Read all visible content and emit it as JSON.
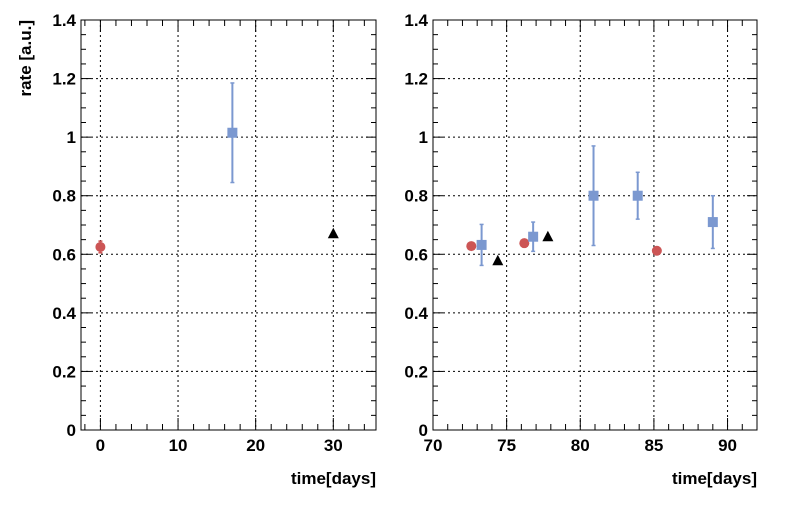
{
  "chart_data": [
    {
      "type": "scatter",
      "panel": "left",
      "xlabel": "time[days]",
      "ylabel": "rate [a.u.]",
      "xlim": [
        -2.5,
        35.5
      ],
      "ylim": [
        0,
        1.4
      ],
      "x_ticks": [
        0,
        10,
        20,
        30
      ],
      "y_ticks": [
        0,
        0.2,
        0.4,
        0.6,
        0.8,
        1,
        1.2,
        1.4
      ],
      "y_tick_labels": [
        "0",
        "0.2",
        "0.4",
        "0.6",
        "0.8",
        "1",
        "1.2",
        "1.4"
      ],
      "grid": true,
      "series": [
        {
          "name": "red-circles",
          "marker": "circle",
          "color": "#cc5555",
          "points": [
            {
              "x": 0,
              "y": 0.625,
              "err": 0.02
            }
          ]
        },
        {
          "name": "blue-squares",
          "marker": "square",
          "color": "#7b98d0",
          "points": [
            {
              "x": 17,
              "y": 1.015,
              "err": 0.17
            }
          ]
        },
        {
          "name": "black-triangles",
          "marker": "triangle",
          "color": "#000000",
          "points": [
            {
              "x": 30,
              "y": 0.67,
              "err": 0
            }
          ]
        }
      ]
    },
    {
      "type": "scatter",
      "panel": "right",
      "xlabel": "time[days]",
      "ylabel": "",
      "xlim": [
        70,
        92
      ],
      "ylim": [
        0,
        1.4
      ],
      "x_ticks": [
        70,
        75,
        80,
        85,
        90
      ],
      "y_ticks": [
        0,
        0.2,
        0.4,
        0.6,
        0.8,
        1,
        1.2,
        1.4
      ],
      "y_tick_labels": [
        "0",
        "0.2",
        "0.4",
        "0.6",
        "0.8",
        "1",
        "1.2",
        "1.4"
      ],
      "grid": true,
      "series": [
        {
          "name": "red-circles",
          "marker": "circle",
          "color": "#cc5555",
          "points": [
            {
              "x": 72.6,
              "y": 0.628,
              "err": 0
            },
            {
              "x": 76.2,
              "y": 0.638,
              "err": 0
            },
            {
              "x": 85.2,
              "y": 0.612,
              "err": 0
            }
          ]
        },
        {
          "name": "blue-squares",
          "marker": "square",
          "color": "#7b98d0",
          "points": [
            {
              "x": 73.3,
              "y": 0.632,
              "err": 0.07
            },
            {
              "x": 76.8,
              "y": 0.66,
              "err": 0.05
            },
            {
              "x": 80.9,
              "y": 0.8,
              "err": 0.17
            },
            {
              "x": 83.9,
              "y": 0.8,
              "err": 0.08
            },
            {
              "x": 89.0,
              "y": 0.71,
              "err": 0.09
            }
          ]
        },
        {
          "name": "black-triangles",
          "marker": "triangle",
          "color": "#000000",
          "points": [
            {
              "x": 74.4,
              "y": 0.578,
              "err": 0
            },
            {
              "x": 77.8,
              "y": 0.66,
              "err": 0
            }
          ]
        }
      ]
    }
  ]
}
